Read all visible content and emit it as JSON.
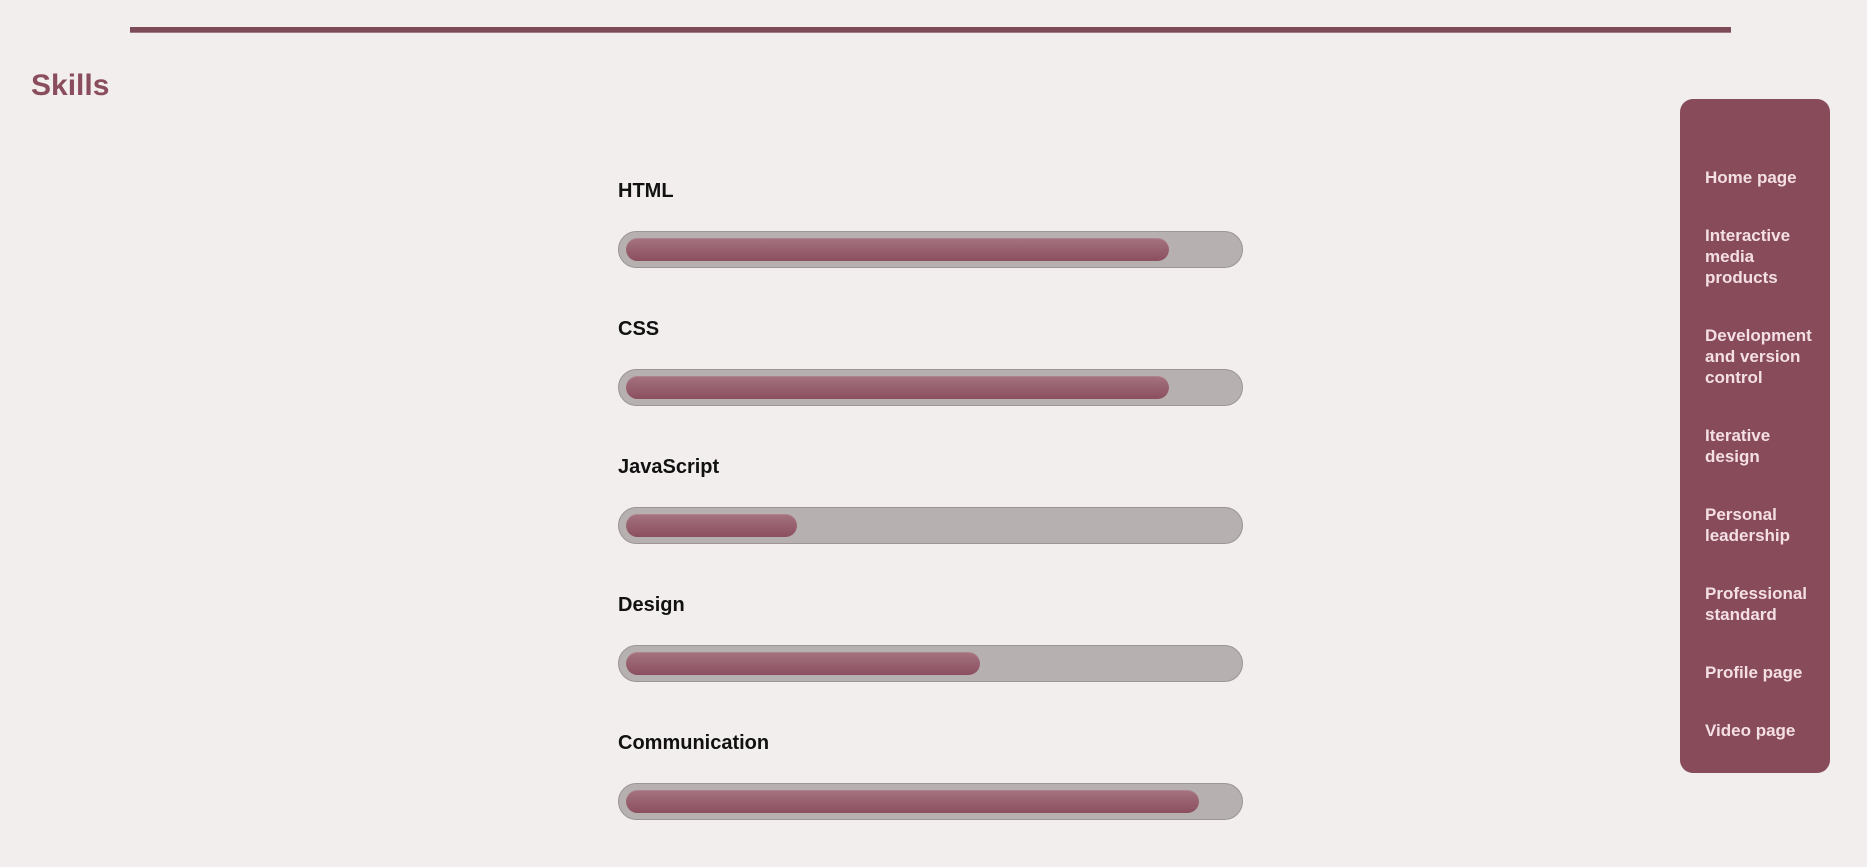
{
  "page": {
    "title": "Skills"
  },
  "skills": [
    {
      "label": "HTML",
      "level": 0.89
    },
    {
      "label": "CSS",
      "level": 0.89
    },
    {
      "label": "JavaScript",
      "level": 0.28
    },
    {
      "label": "Design",
      "level": 0.58
    },
    {
      "label": "Communication",
      "level": 0.94
    }
  ],
  "nav": {
    "items": [
      {
        "label": "Home page"
      },
      {
        "label": "Interactive media products"
      },
      {
        "label": "Development and version control"
      },
      {
        "label": "Iterative design"
      },
      {
        "label": "Personal leadership"
      },
      {
        "label": "Professional standard"
      },
      {
        "label": "Profile page"
      },
      {
        "label": "Video page"
      }
    ]
  },
  "colors": {
    "background": "#f2eeed",
    "accent": "#874b59",
    "nav_text": "#f4dfe5",
    "bar_track": "#b6b1b0",
    "bar_fill": "#955a69"
  }
}
